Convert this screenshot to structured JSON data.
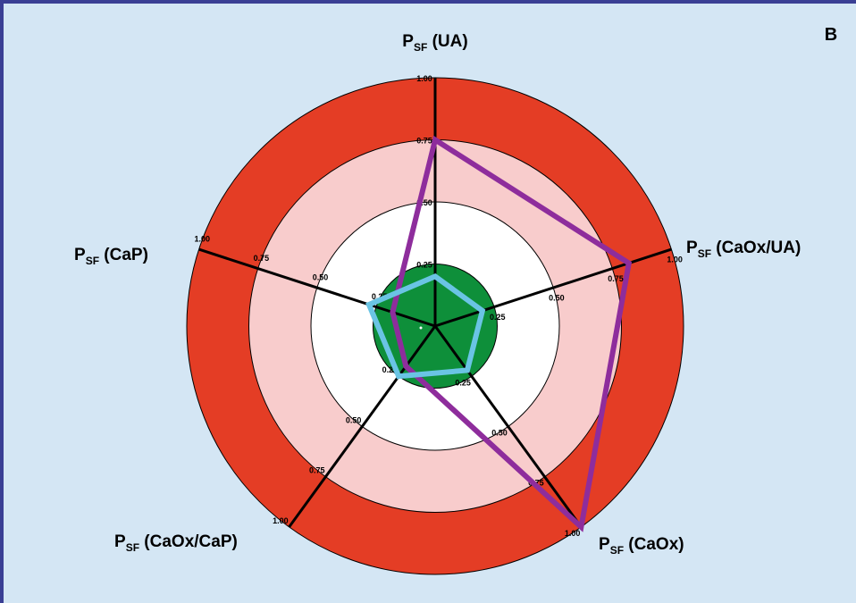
{
  "panel_label": "B",
  "chart_data": {
    "type": "radar",
    "axes": [
      {
        "main": "P",
        "sub": "SF",
        "rest": " (UA)"
      },
      {
        "main": "P",
        "sub": "SF",
        "rest": " (CaOx/UA)"
      },
      {
        "main": "P",
        "sub": "SF",
        "rest": " (CaOx)"
      },
      {
        "main": "P",
        "sub": "SF",
        "rest": " (CaOx/CaP)"
      },
      {
        "main": "P",
        "sub": "SF",
        "rest": " (CaP)"
      }
    ],
    "rlim": [
      0,
      1
    ],
    "ticks": [
      "0.25",
      "0.50",
      "0.75",
      "1.00"
    ],
    "zones": [
      {
        "from": 0.75,
        "to": 1.0,
        "color": "#e43d25"
      },
      {
        "from": 0.5,
        "to": 0.75,
        "color": "#f8cccc"
      },
      {
        "from": 0.25,
        "to": 0.5,
        "color": "#ffffff"
      },
      {
        "from": 0.0,
        "to": 0.25,
        "color": "#0e8f3a"
      }
    ],
    "series": [
      {
        "values": [
          0.75,
          0.82,
          1.0,
          0.2,
          0.18
        ],
        "color": "#8e2d9c"
      },
      {
        "values": [
          0.2,
          0.2,
          0.22,
          0.25,
          0.28
        ],
        "color": "#6ac4e4"
      }
    ]
  }
}
